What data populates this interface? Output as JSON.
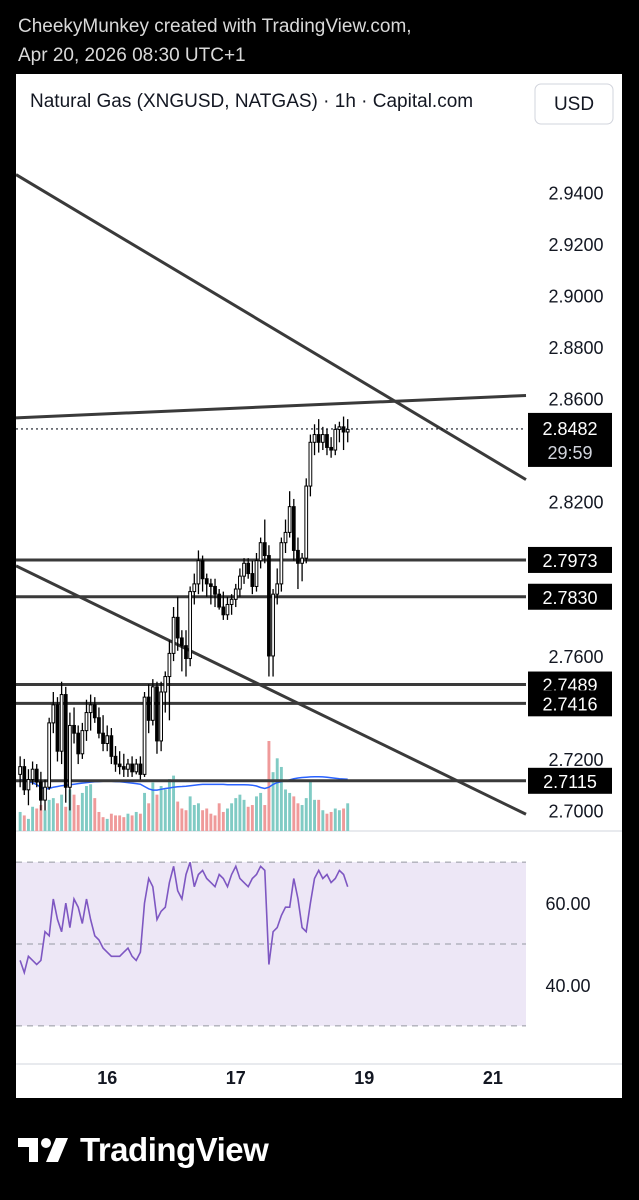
{
  "header": {
    "line1": "CheekyMunkey created with TradingView.com,",
    "line2": "Apr 20, 2026 08:30 UTC+1"
  },
  "footer": {
    "brand": "TradingView"
  },
  "colors": {
    "bull": "#ffffff",
    "bear": "#000000",
    "wick": "#000000",
    "vol_up": "#80cbc4",
    "vol_down": "#ef9a9a",
    "ma": "#2962ff",
    "rsi": "#7e57c2",
    "rsi_band": "#ede7f6",
    "line": "#3a3a3a",
    "price_tag": "#000000"
  },
  "chart_data": [
    {
      "type": "candlestick",
      "title": "Natural Gas (XNGUSD, NATGAS) · 1h · Capital.com",
      "currency_button": "USD",
      "ylim": [
        2.692,
        2.955
      ],
      "y_ticks": [
        "2.9400",
        "2.9200",
        "2.9000",
        "2.8800",
        "2.8600",
        "2.8200",
        "2.7600",
        "2.7200",
        "2.7000"
      ],
      "y_tick_values": [
        2.94,
        2.92,
        2.9,
        2.88,
        2.86,
        2.82,
        2.76,
        2.72,
        2.7
      ],
      "x_ticks": [
        "16",
        "17",
        "19",
        "21"
      ],
      "x_tick_index": [
        21,
        52,
        83,
        114
      ],
      "x_range": [
        -1,
        122
      ],
      "current_price": {
        "label": "2.8482",
        "value": 2.8482,
        "countdown": "29:59"
      },
      "horizontal_levels": [
        {
          "label": "2.7973",
          "value": 2.7973
        },
        {
          "label": "2.7830",
          "value": 2.783
        },
        {
          "label": "2.7489",
          "value": 2.7489
        },
        {
          "label": "2.7416",
          "value": 2.7416
        },
        {
          "label": "2.7115",
          "value": 2.7115
        }
      ],
      "trend_lines": [
        {
          "name": "upper-descending",
          "from": [
            -1,
            2.947
          ],
          "to": [
            122,
            2.8285
          ]
        },
        {
          "name": "lower-descending",
          "from": [
            -1,
            2.795
          ],
          "to": [
            122,
            2.6985
          ]
        },
        {
          "name": "rising-resistance",
          "from": [
            -1,
            2.8525
          ],
          "to": [
            122,
            2.8612
          ]
        }
      ],
      "ohlc": [
        [
          2.714,
          2.721,
          2.709,
          2.717
        ],
        [
          2.717,
          2.72,
          2.706,
          2.708
        ],
        [
          2.708,
          2.716,
          2.702,
          2.712
        ],
        [
          2.712,
          2.719,
          2.71,
          2.716
        ],
        [
          2.716,
          2.718,
          2.709,
          2.711
        ],
        [
          2.711,
          2.715,
          2.7,
          2.704
        ],
        [
          2.704,
          2.712,
          2.7,
          2.709
        ],
        [
          2.709,
          2.736,
          2.708,
          2.734
        ],
        [
          2.734,
          2.746,
          2.73,
          2.741
        ],
        [
          2.741,
          2.744,
          2.719,
          2.723
        ],
        [
          2.723,
          2.75,
          2.718,
          2.745
        ],
        [
          2.745,
          2.748,
          2.703,
          2.709
        ],
        [
          2.709,
          2.738,
          2.7,
          2.733
        ],
        [
          2.733,
          2.74,
          2.726,
          2.73
        ],
        [
          2.73,
          2.733,
          2.718,
          2.722
        ],
        [
          2.722,
          2.734,
          2.72,
          2.731
        ],
        [
          2.731,
          2.743,
          2.727,
          2.738
        ],
        [
          2.738,
          2.745,
          2.731,
          2.741
        ],
        [
          2.741,
          2.744,
          2.734,
          2.736
        ],
        [
          2.736,
          2.74,
          2.728,
          2.73
        ],
        [
          2.73,
          2.737,
          2.723,
          2.726
        ],
        [
          2.726,
          2.733,
          2.723,
          2.729
        ],
        [
          2.729,
          2.732,
          2.718,
          2.721
        ],
        [
          2.721,
          2.725,
          2.715,
          2.718
        ],
        [
          2.718,
          2.723,
          2.714,
          2.717
        ],
        [
          2.717,
          2.722,
          2.713,
          2.716
        ],
        [
          2.716,
          2.72,
          2.713,
          2.718
        ],
        [
          2.718,
          2.721,
          2.713,
          2.715
        ],
        [
          2.715,
          2.72,
          2.714,
          2.718
        ],
        [
          2.718,
          2.721,
          2.712,
          2.714
        ],
        [
          2.714,
          2.746,
          2.713,
          2.744
        ],
        [
          2.744,
          2.749,
          2.73,
          2.735
        ],
        [
          2.735,
          2.751,
          2.733,
          2.748
        ],
        [
          2.748,
          2.75,
          2.722,
          2.727
        ],
        [
          2.727,
          2.75,
          2.723,
          2.746
        ],
        [
          2.746,
          2.754,
          2.738,
          2.752
        ],
        [
          2.752,
          2.766,
          2.735,
          2.761
        ],
        [
          2.761,
          2.779,
          2.758,
          2.775
        ],
        [
          2.775,
          2.783,
          2.762,
          2.767
        ],
        [
          2.767,
          2.77,
          2.754,
          2.764
        ],
        [
          2.764,
          2.77,
          2.752,
          2.759
        ],
        [
          2.759,
          2.787,
          2.756,
          2.785
        ],
        [
          2.785,
          2.792,
          2.78,
          2.788
        ],
        [
          2.788,
          2.801,
          2.784,
          2.797
        ],
        [
          2.797,
          2.799,
          2.785,
          2.79
        ],
        [
          2.79,
          2.792,
          2.783,
          2.788
        ],
        [
          2.788,
          2.79,
          2.78,
          2.787
        ],
        [
          2.787,
          2.79,
          2.779,
          2.784
        ],
        [
          2.784,
          2.786,
          2.778,
          2.779
        ],
        [
          2.779,
          2.785,
          2.774,
          2.776
        ],
        [
          2.776,
          2.783,
          2.774,
          2.78
        ],
        [
          2.78,
          2.784,
          2.776,
          2.782
        ],
        [
          2.782,
          2.788,
          2.779,
          2.786
        ],
        [
          2.786,
          2.794,
          2.783,
          2.791
        ],
        [
          2.791,
          2.798,
          2.788,
          2.796
        ],
        [
          2.796,
          2.798,
          2.79,
          2.792
        ],
        [
          2.792,
          2.797,
          2.784,
          2.787
        ],
        [
          2.787,
          2.8,
          2.785,
          2.797
        ],
        [
          2.797,
          2.806,
          2.794,
          2.804
        ],
        [
          2.804,
          2.813,
          2.796,
          2.799
        ],
        [
          2.799,
          2.803,
          2.752,
          2.76
        ],
        [
          2.76,
          2.786,
          2.752,
          2.784
        ],
        [
          2.784,
          2.794,
          2.78,
          2.788
        ],
        [
          2.788,
          2.806,
          2.785,
          2.804
        ],
        [
          2.804,
          2.813,
          2.8,
          2.808
        ],
        [
          2.808,
          2.824,
          2.806,
          2.818
        ],
        [
          2.818,
          2.821,
          2.797,
          2.801
        ],
        [
          2.801,
          2.806,
          2.786,
          2.796
        ],
        [
          2.796,
          2.8,
          2.789,
          2.798
        ],
        [
          2.798,
          2.829,
          2.796,
          2.826
        ],
        [
          2.826,
          2.846,
          2.822,
          2.843
        ],
        [
          2.843,
          2.85,
          2.838,
          2.846
        ],
        [
          2.846,
          2.852,
          2.839,
          2.843
        ],
        [
          2.843,
          2.849,
          2.84,
          2.846
        ],
        [
          2.846,
          2.848,
          2.838,
          2.841
        ],
        [
          2.841,
          2.845,
          2.837,
          2.84
        ],
        [
          2.84,
          2.85,
          2.838,
          2.848
        ],
        [
          2.848,
          2.851,
          2.843,
          2.849
        ],
        [
          2.849,
          2.853,
          2.84,
          2.847
        ],
        [
          2.847,
          2.852,
          2.843,
          2.848
        ]
      ],
      "volume": [
        11,
        9,
        7,
        14,
        13,
        15,
        12,
        18,
        19,
        16,
        21,
        14,
        24,
        21,
        15,
        22,
        26,
        27,
        19,
        11,
        8,
        7,
        10,
        9,
        9,
        8,
        10,
        9,
        11,
        10,
        22,
        16,
        28,
        21,
        26,
        24,
        30,
        32,
        17,
        13,
        12,
        20,
        15,
        16,
        12,
        13,
        10,
        9,
        16,
        11,
        13,
        16,
        19,
        21,
        18,
        14,
        15,
        20,
        22,
        15,
        52,
        34,
        42,
        37,
        24,
        22,
        20,
        16,
        15,
        19,
        29,
        18,
        18,
        12,
        10,
        11,
        13,
        12,
        13,
        16
      ],
      "ma_values": [
        2.712,
        2.7116,
        2.7112,
        2.7108,
        2.71,
        2.709,
        2.7083,
        2.7085,
        2.709,
        2.7093,
        2.7096,
        2.7098,
        2.71,
        2.7102,
        2.7104,
        2.7106,
        2.7108,
        2.711,
        2.7111,
        2.7112,
        2.7113,
        2.7113,
        2.7113,
        2.7112,
        2.7111,
        2.711,
        2.7108,
        2.7106,
        2.7104,
        2.7102,
        2.7093,
        2.7084,
        2.7079,
        2.7079,
        2.7082,
        2.7085,
        2.7087,
        2.709,
        2.7092,
        2.7093,
        2.7094,
        2.7096,
        2.7098,
        2.71,
        2.7101,
        2.7101,
        2.7101,
        2.7101,
        2.7101,
        2.7101,
        2.71,
        2.71,
        2.71,
        2.71,
        2.71,
        2.7099,
        2.7098,
        2.7095,
        2.7089,
        2.7085,
        2.709,
        2.7101,
        2.7108,
        2.7112,
        2.7115,
        2.7119,
        2.7123,
        2.7126,
        2.7128,
        2.7129,
        2.713,
        2.7131,
        2.7131,
        2.713,
        2.7129,
        2.7127,
        2.7125,
        2.7123,
        2.7122,
        2.7121
      ],
      "ma_xlim": [
        -1,
        81
      ]
    },
    {
      "type": "line",
      "title": "",
      "ylim": [
        28,
        72
      ],
      "y_ticks": [
        "60.00",
        "40.00"
      ],
      "y_tick_values": [
        60,
        40
      ],
      "band": [
        30,
        70
      ],
      "mid": 50,
      "values": [
        46,
        43,
        47,
        46,
        45,
        46,
        53,
        52,
        61,
        56,
        53,
        60,
        54,
        61,
        59,
        55,
        61,
        56,
        52,
        51,
        49,
        48,
        47,
        47,
        47,
        48,
        49,
        47,
        46,
        48,
        60,
        66,
        64,
        56,
        58,
        59,
        65,
        69,
        63,
        61,
        67,
        70,
        64,
        67,
        68,
        66,
        65,
        64,
        67,
        66,
        64,
        67,
        69,
        66,
        65,
        64,
        66,
        67,
        69,
        68,
        45,
        53,
        54,
        57,
        59,
        59,
        66,
        61,
        54,
        53,
        60,
        66,
        68,
        66,
        67,
        65,
        66,
        68,
        67,
        64
      ]
    }
  ]
}
